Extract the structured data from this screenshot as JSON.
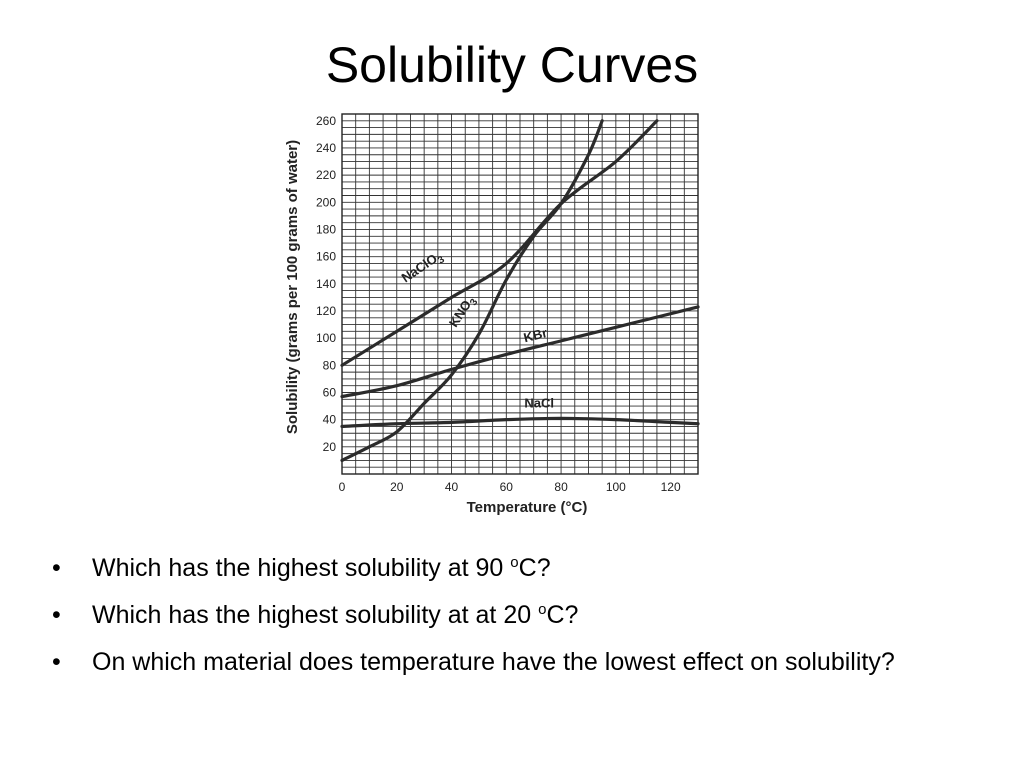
{
  "slide": {
    "title": "Solubility Curves",
    "questions": [
      {
        "bullet": "•",
        "before": "Which has the highest solubility at 90 ",
        "sup": "o",
        "after": "C?"
      },
      {
        "bullet": "•",
        "before": "Which has the highest solubility at at 20 ",
        "sup": "o",
        "after": "C?"
      },
      {
        "bullet": "•",
        "text": "On which material does temperature have the lowest effect on solubility?"
      }
    ]
  },
  "chart_data": {
    "type": "line",
    "title": "",
    "xlabel": "Temperature (°C)",
    "ylabel": "Solubility (grams per 100 grams of water)",
    "xlim": [
      0,
      130
    ],
    "ylim": [
      0,
      265
    ],
    "grid": true,
    "x_ticks": [
      0,
      20,
      40,
      60,
      80,
      100,
      120
    ],
    "y_ticks": [
      20,
      40,
      60,
      80,
      100,
      120,
      140,
      160,
      180,
      200,
      220,
      240,
      260
    ],
    "series": [
      {
        "name": "NaClO3",
        "label_main": "NaClO",
        "label_sub": "3",
        "label_at": [
          30,
          150
        ],
        "label_angle": -34,
        "points": [
          [
            0,
            80
          ],
          [
            20,
            105
          ],
          [
            40,
            130
          ],
          [
            60,
            155
          ],
          [
            80,
            199
          ],
          [
            100,
            230
          ],
          [
            115,
            260
          ]
        ]
      },
      {
        "name": "KNO3",
        "label_main": "KNO",
        "label_sub": "3",
        "label_at": [
          45,
          118
        ],
        "label_angle": -57,
        "points": [
          [
            0,
            10
          ],
          [
            10,
            20
          ],
          [
            20,
            31
          ],
          [
            30,
            52
          ],
          [
            40,
            73
          ],
          [
            50,
            103
          ],
          [
            60,
            143
          ],
          [
            70,
            175
          ],
          [
            80,
            199
          ],
          [
            90,
            235
          ],
          [
            95,
            260
          ]
        ]
      },
      {
        "name": "KBr",
        "label_main": "KBr",
        "label_sub": "",
        "label_at": [
          71,
          99
        ],
        "label_angle": -14,
        "points": [
          [
            0,
            57
          ],
          [
            20,
            65
          ],
          [
            40,
            77
          ],
          [
            60,
            88
          ],
          [
            80,
            98
          ],
          [
            100,
            108
          ],
          [
            130,
            123
          ]
        ]
      },
      {
        "name": "NaCl",
        "label_main": "NaCl",
        "label_sub": "",
        "label_at": [
          72,
          49
        ],
        "label_angle": 0,
        "points": [
          [
            0,
            35
          ],
          [
            20,
            37
          ],
          [
            40,
            38
          ],
          [
            60,
            40
          ],
          [
            80,
            41
          ],
          [
            100,
            40
          ],
          [
            120,
            38
          ],
          [
            130,
            37
          ]
        ]
      }
    ]
  }
}
